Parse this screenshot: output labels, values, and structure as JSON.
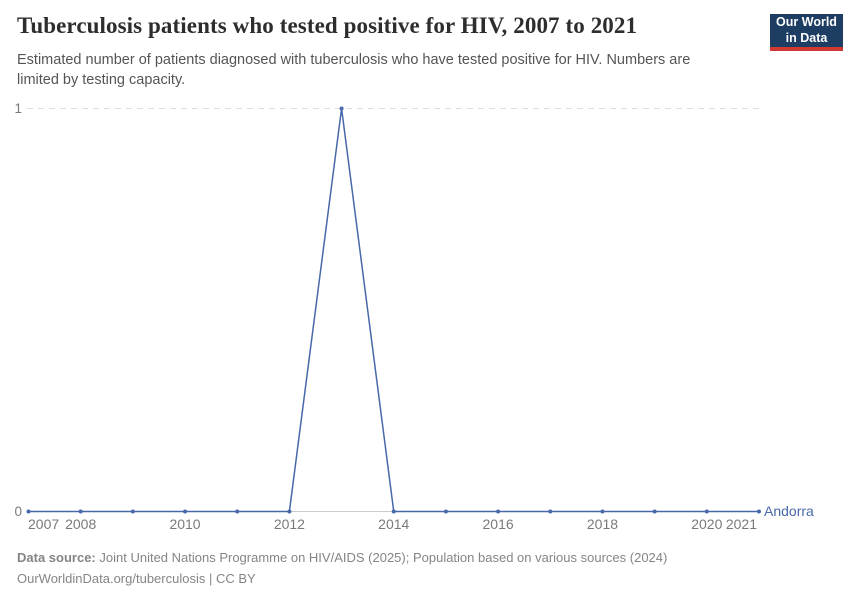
{
  "header": {
    "title": "Tuberculosis patients who tested positive for HIV, 2007 to 2021",
    "subtitle": "Estimated number of patients diagnosed with tuberculosis who have tested positive for HIV. Numbers are limited by testing capacity.",
    "logo": {
      "line1": "Our World",
      "line2": "in Data"
    }
  },
  "chart_data": {
    "type": "line",
    "title": "Tuberculosis patients who tested positive for HIV, 2007 to 2021",
    "x": [
      2007,
      2008,
      2009,
      2010,
      2011,
      2012,
      2013,
      2014,
      2015,
      2016,
      2017,
      2018,
      2019,
      2020,
      2021
    ],
    "series": [
      {
        "name": "Andorra",
        "color": "#4768a9",
        "values": [
          0,
          0,
          0,
          0,
          0,
          0,
          1,
          0,
          0,
          0,
          0,
          0,
          0,
          0,
          0
        ]
      }
    ],
    "x_ticks": [
      2007,
      2008,
      2010,
      2012,
      2014,
      2016,
      2018,
      2020,
      2021
    ],
    "y_ticks": [
      0,
      1
    ],
    "xlim": [
      2007,
      2021
    ],
    "ylim": [
      0,
      1
    ],
    "legend_position": "right-of-line-end",
    "grid": "horizontal-dashed-at-max",
    "colors": {
      "gridline": "#dddddd",
      "zero_line": "#cccccc",
      "tick_text": "#7a7a7a"
    }
  },
  "footer": {
    "datasource_label": "Data source:",
    "datasource_text": "Joint United Nations Programme on HIV/AIDS (2025); Population based on various sources (2024)",
    "license_line": "OurWorldinData.org/tuberculosis | CC BY"
  }
}
